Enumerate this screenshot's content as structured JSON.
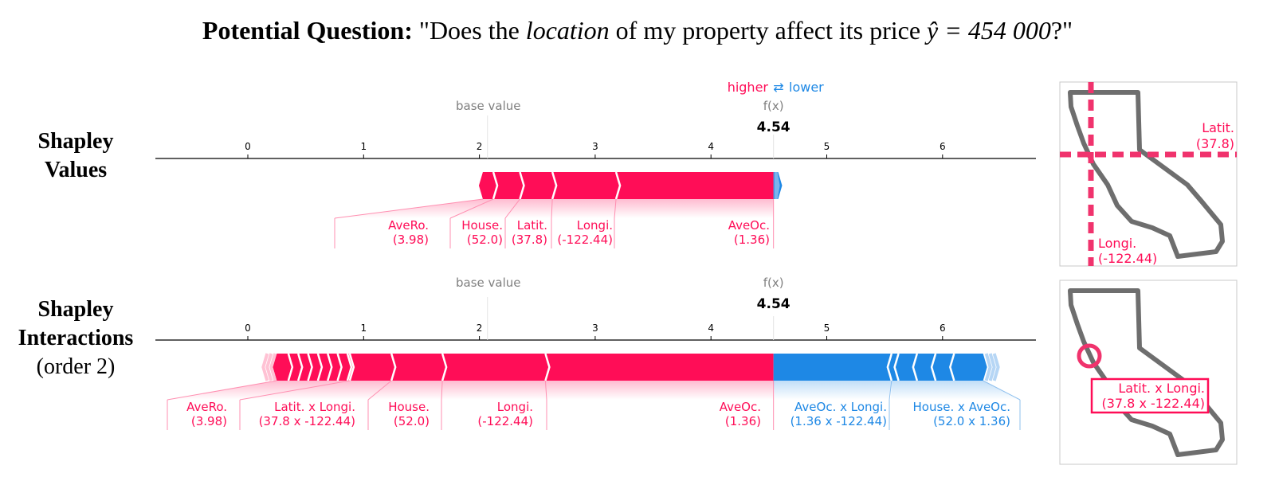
{
  "title": {
    "bold": "Potential Question:",
    "pre": "\"Does the ",
    "italic": "location",
    "post": " of my property affect its price ",
    "math": "ŷ = 454 000",
    "end": "?\""
  },
  "row_labels": {
    "shapley": [
      "Shapley",
      "Values"
    ],
    "interactions": [
      "Shapley",
      "Interactions",
      "(order 2)"
    ]
  },
  "legend": {
    "higher": "higher",
    "lower": "lower",
    "arrows": "⇄"
  },
  "colors": {
    "positive": "#ff0d57",
    "negative": "#1e88e5",
    "axis": "#000000",
    "muted": "#808080",
    "map": "#6e6e6e"
  },
  "chart_data": [
    {
      "type": "force_plot",
      "name": "Shapley Values",
      "base_value_label": "base value",
      "fx_label": "f(x)",
      "output_value": 4.54,
      "output_label": "4.54",
      "base_value": 2.07,
      "xlim": [
        -0.8,
        6.8
      ],
      "ticks": [
        0,
        1,
        2,
        3,
        4,
        5,
        6
      ],
      "positive": [
        {
          "name": "AveRo.",
          "value": "(3.98)",
          "start": 2.03,
          "end": 2.12
        },
        {
          "name": "House.",
          "value": "(52.0)",
          "start": 2.12,
          "end": 2.35
        },
        {
          "name": "Latit.",
          "value": "(37.8)",
          "start": 2.35,
          "end": 2.63
        },
        {
          "name": "Longi.",
          "value": "(-122.44)",
          "start": 2.63,
          "end": 3.18
        },
        {
          "name": "AveOc.",
          "value": "(1.36)",
          "start": 3.18,
          "end": 4.54
        }
      ],
      "negative": [
        {
          "name": "",
          "value": "",
          "start": 4.54,
          "end": 4.58
        }
      ]
    },
    {
      "type": "force_plot",
      "name": "Shapley Interactions (order 2)",
      "base_value_label": "base value",
      "fx_label": "f(x)",
      "output_value": 4.54,
      "output_label": "4.54",
      "base_value": 2.07,
      "xlim": [
        -0.8,
        6.8
      ],
      "ticks": [
        0,
        1,
        2,
        3,
        4,
        5,
        6
      ],
      "positive": [
        {
          "name": "AveRo.",
          "value": "(3.98)",
          "start": 0.25,
          "end": 0.88
        },
        {
          "name": "Latit. x Longi.",
          "value": "(37.8 x -122.44)",
          "start": 0.88,
          "end": 1.24
        },
        {
          "name": "House.",
          "value": "(52.0)",
          "start": 1.24,
          "end": 1.68
        },
        {
          "name": "Longi.",
          "value": "(-122.44)",
          "start": 1.68,
          "end": 2.57
        },
        {
          "name": "AveOc.",
          "value": "(1.36)",
          "start": 2.57,
          "end": 4.54
        }
      ],
      "negative": [
        {
          "name": "AveOc. x Longi.",
          "value": "(1.36 x -122.44)",
          "start": 4.54,
          "end": 5.56
        },
        {
          "name": "House. x AveOc.",
          "value": "(52.0 x 1.36)",
          "start": 5.56,
          "end": 6.35
        }
      ]
    }
  ],
  "map1": {
    "lat_label": "Latit.",
    "lat_value": "(37.8)",
    "lon_label": "Longi.",
    "lon_value": "(-122.44)"
  },
  "map2": {
    "label": "Latit. x Longi.",
    "value": "(37.8 x -122.44)"
  }
}
